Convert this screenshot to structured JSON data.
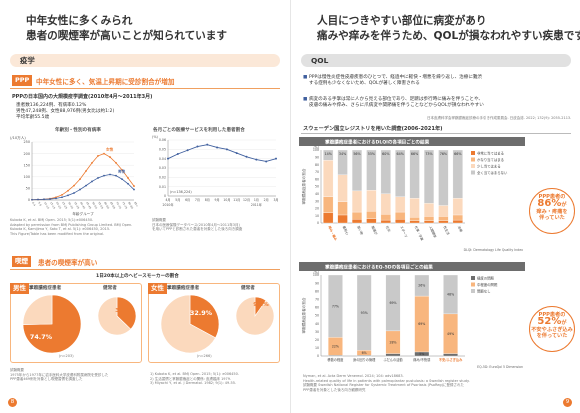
{
  "left": {
    "heading": [
      "中年女性に多くみられ",
      "患者の喫煙率が高いことが知られています"
    ],
    "section1": {
      "title": "疫学"
    },
    "ppp_tag": "PPP",
    "ppp_headline": "中年女性に多く、気温上昇期に受診割合が増加",
    "survey_title": "PPPの日本国内の大規模疫学調査(2010年4月〜2011年3月)",
    "survey_stats": [
      "患者数136,224例、有病率0.12%",
      "男性47,248例、女性88,976例(男女比は約1:2)",
      "平均年齢55.5歳"
    ],
    "chart_age": {
      "title": "年齢別・性別の有病率",
      "y_unit": "(/10万人)",
      "ytick_labels": [
        "0",
        "50",
        "100",
        "150",
        "200",
        "250"
      ],
      "xlabel": "年齢グループ",
      "legend": [
        "女性",
        "男性"
      ]
    },
    "chart_month": {
      "title": "各月ごとの医療サービスを利用した患者割合",
      "ylabel_unit": "(%)",
      "n_label": "(n=136,224)",
      "ytick_labels": [
        "0",
        "0.01",
        "0.02",
        "0.03",
        "0.04",
        "0.05",
        "0.06"
      ],
      "xtick_labels": [
        "4月",
        "5月",
        "6月",
        "7月",
        "8月",
        "9月",
        "10月",
        "11月",
        "12月",
        "1月",
        "2月",
        "3月"
      ],
      "year_labels": [
        "2010年",
        "2011年"
      ]
    },
    "ref1": [
      "Kubota K, et al. BMJ Open. 2015; 5(1):e006450.",
      "Adapted by permission from BMJ Publishing Group Limited. BMJ Open.",
      "Kubota K, Kamijima Y, Sato T, et al. 5(1): e006450, 2015.",
      "This Figure/Table has been modified from the original."
    ],
    "ref2": [
      "試験概要",
      "日本の医療保険データベース(2010年4月〜2011年3月)",
      "を用いてPPPと診断された患者を対象とした後ろ向き調査"
    ],
    "section2": {
      "title": "喫煙",
      "headline": "患者の喫煙率が高い"
    },
    "smoke_title": "1日20本以上のヘビースモーカーの割合",
    "male": {
      "tag": "男性",
      "label_patient": "掌蹠膿疱症患者",
      "label_healthy": "健常者",
      "n": "(n=203)",
      "patient_pct_label": "74.7%",
      "healthy_pct_label": "37.2%"
    },
    "female": {
      "tag": "女性",
      "label_patient": "掌蹠膿疱症患者",
      "label_healthy": "健常者",
      "n": "(n=266)",
      "patient_pct_label": "32.9%",
      "healthy_pct_label": "9.8%"
    },
    "smoke_ref": [
      "試験概要",
      "1975年から1977年に岩手医科大学皮膚科附属病院を受診した",
      "PPP患者469例を対象とし喫煙習慣を調査した"
    ],
    "smoke_ref2": [
      "1) Kubota K, et al. BMJ Open. 2015; 5(1): e006450.",
      "2) 生活習慣と掌蹠膿疱症との関係: 皮膚臨床 1979.",
      "3) Miyachi Y, et al. J Dermatol. 1982; 9(1): 49-55."
    ],
    "page_num": "8"
  },
  "right": {
    "heading": [
      "人目につきやすい部位に病変があり",
      "痛みや痒みを伴うため、QOLが損なわれやすい疾患です"
    ],
    "section": {
      "title": "QOL"
    },
    "bullets": [
      [
        "PPPは慢性炎症性皮膚疾患のひとつで、経過中に軽快・増悪を繰り返し、治療に難渋",
        "する症例も少なくないため、QOLが著しく障害される"
      ],
      [
        "病変のある手掌は常に人から見える部位であり、足蹠は歩行時に痛みを伴うことや、",
        "皮膚の痛みや痒み、さらに爪病変や関節痛を伴うことなどからQOLが損なわれやすい"
      ]
    ],
    "bullet_ref": "日本皮膚科学会掌蹠膿疱症診療の手引き作成委員会. 日皮会誌. 2022; 132(9): 2055-2113.",
    "survey_title": "スウェーデン国立レジストリを用いた調査(2006-2021年)",
    "chart_dlqi": {
      "title": "掌蹠膿疱症患者におけるDLQIの各項目ごとの結果",
      "ylabel": "掌蹠膿疱症患者の割合",
      "ytick_labels": [
        "0",
        "10",
        "20",
        "30",
        "40",
        "50",
        "60",
        "70",
        "80",
        "90",
        "100"
      ],
      "yunit": "(%)",
      "categories": [
        "痒み・痛み",
        "羞恥心",
        "買い物",
        "服選び",
        "社交",
        "スポーツ",
        "仕事・学業",
        "人間関係",
        "性生活",
        "治療"
      ],
      "legend": [
        "非常に当てはまる",
        "かなり当てはまる",
        "少し当てはまる",
        "全く当てはまらない"
      ],
      "caption": "DLQI: Dermatology Life Quality Index",
      "highlight_label": "痒み・痛み"
    },
    "bubble1": [
      "PPP患者の",
      "86%",
      "が",
      "痒み・",
      "疼痛を",
      "伴っていた"
    ],
    "chart_eq": {
      "title": "掌蹠膿疱症患者におけるEQ-5Dの各項目ごとの結果",
      "ylabel": "掌蹠膿疱症患者の割合",
      "ytick_labels": [
        "0",
        "10",
        "20",
        "30",
        "40",
        "50",
        "60",
        "70",
        "80",
        "90",
        "100"
      ],
      "yunit": "(%)",
      "categories": [
        "移動の程度",
        "身の回りの管理",
        "ふだんの活動",
        "痛み/不快感",
        "不安/ふさぎ込み"
      ],
      "legend": [
        "極度の問題",
        "中程度の問題",
        "問題なし"
      ],
      "caption": "EQ-5D: EuroQol 5 Dimension",
      "highlight_label": "不安/ふさぎ込み"
    },
    "bubble2": [
      "PPP患者の",
      "52%",
      "が",
      "不安や",
      "ふさぎ込み",
      "を伴っていた"
    ],
    "ref": [
      "Nyman, et al. Acta Derm Venereol. 2024; 104: adv18683.",
      "Health-related quality of life in patients with palmoplantar pustulosis: a Swedish register study.",
      "試験概要 Swedish National Register for Systemic Treatment of Psoriasis (PsoReg)に登録された",
      "PPP患者を対象とした後ろ向き観察研究"
    ],
    "page_num": "9"
  },
  "colors": {
    "orange": "#ec7a30",
    "orange_light": "#f8b67e",
    "peach": "#fbd9bd",
    "blue": "#3f5f9e",
    "gray_dark": "#6d6d6d",
    "gray_mid": "#9a9a9a",
    "gray_light": "#c9c9c9",
    "gray_pale": "#e6e6e6"
  },
  "chart_data": [
    {
      "type": "line",
      "title": "年齢別・性別の有病率",
      "xlabel": "年齢グループ",
      "ylabel": "(/10万人)",
      "ylim": [
        0,
        250
      ],
      "categories": [
        "0-4",
        "5-9",
        "10-14",
        "15-19",
        "20-24",
        "25-29",
        "30-34",
        "35-39",
        "40-44",
        "45-49",
        "50-54",
        "55-59",
        "60-64",
        "65-69",
        "70-74",
        "75-79",
        "80-84",
        "85+"
      ],
      "series": [
        {
          "name": "女性",
          "values": [
            1,
            2,
            3,
            6,
            12,
            22,
            40,
            62,
            90,
            125,
            160,
            190,
            200,
            185,
            160,
            130,
            95,
            60
          ]
        },
        {
          "name": "男性",
          "values": [
            1,
            2,
            3,
            4,
            7,
            12,
            20,
            30,
            45,
            62,
            80,
            95,
            105,
            110,
            105,
            90,
            70,
            45
          ]
        }
      ]
    },
    {
      "type": "line",
      "title": "各月ごとの医療サービスを利用した患者割合",
      "ylabel": "(%)",
      "ylim": [
        0,
        0.06
      ],
      "categories": [
        "4月",
        "5月",
        "6月",
        "7月",
        "8月",
        "9月",
        "10月",
        "11月",
        "12月",
        "1月",
        "2月",
        "3月"
      ],
      "series": [
        {
          "values": [
            0.04,
            0.045,
            0.049,
            0.053,
            0.055,
            0.052,
            0.05,
            0.046,
            0.042,
            0.039,
            0.037,
            0.04
          ]
        }
      ]
    },
    {
      "type": "pie",
      "title": "男性 掌蹠膿疱症患者",
      "values": [
        74.7,
        25.3
      ]
    },
    {
      "type": "pie",
      "title": "男性 健常者",
      "values": [
        37.2,
        62.8
      ]
    },
    {
      "type": "pie",
      "title": "女性 掌蹠膿疱症患者",
      "values": [
        32.9,
        67.1
      ]
    },
    {
      "type": "pie",
      "title": "女性 健常者",
      "values": [
        9.8,
        90.2
      ]
    },
    {
      "type": "bar",
      "title": "掌蹠膿疱症患者におけるDLQIの各項目ごとの結果",
      "ylabel": "掌蹠膿疱症患者の割合",
      "ylim": [
        0,
        100
      ],
      "categories": [
        "痒み・痛み",
        "羞恥心",
        "買い物",
        "服選び",
        "社交",
        "スポーツ",
        "仕事・学業",
        "人間関係",
        "性生活",
        "治療"
      ],
      "series": [
        {
          "name": "非常に当てはまる",
          "values": [
            14,
            11,
            5,
            6,
            4,
            5,
            3,
            3,
            3,
            4
          ]
        },
        {
          "name": "かなり当てはまる",
          "values": [
            22,
            18,
            10,
            10,
            8,
            10,
            5,
            6,
            6,
            7
          ]
        },
        {
          "name": "少し当てはまる",
          "values": [
            50,
            37,
            29,
            29,
            28,
            21,
            26,
            18,
            15,
            23
          ]
        },
        {
          "name": "全く当てはまらない",
          "values": [
            14,
            34,
            56,
            55,
            60,
            64,
            66,
            73,
            76,
            66
          ]
        }
      ],
      "value_labels": [
        "14%",
        "34%",
        "56%",
        "55%",
        "60%",
        "64%",
        "66%",
        "73%",
        "76%",
        "66%"
      ]
    },
    {
      "type": "bar",
      "title": "掌蹠膿疱症患者におけるEQ-5Dの各項目ごとの結果",
      "ylabel": "掌蹠膿疱症患者の割合",
      "ylim": [
        0,
        100
      ],
      "categories": [
        "移動の程度",
        "身の回りの管理",
        "ふだんの活動",
        "痛み/不快感",
        "不安/ふさぎ込み"
      ],
      "series": [
        {
          "name": "極度の問題",
          "values": [
            1,
            1,
            3,
            5,
            3
          ]
        },
        {
          "name": "中程度の問題",
          "values": [
            22,
            6,
            28,
            69,
            49
          ]
        },
        {
          "name": "問題なし",
          "values": [
            77,
            93,
            69,
            26,
            48
          ]
        }
      ]
    }
  ]
}
